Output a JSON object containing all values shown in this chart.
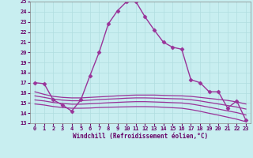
{
  "xlabel": "Windchill (Refroidissement éolien,°C)",
  "bg_color": "#c8eef0",
  "grid_color": "#b0dde0",
  "line_color": "#993399",
  "xlim": [
    -0.5,
    23.5
  ],
  "ylim": [
    13,
    25
  ],
  "yticks": [
    13,
    14,
    15,
    16,
    17,
    18,
    19,
    20,
    21,
    22,
    23,
    24,
    25
  ],
  "xticks": [
    0,
    1,
    2,
    3,
    4,
    5,
    6,
    7,
    8,
    9,
    10,
    11,
    12,
    13,
    14,
    15,
    16,
    17,
    18,
    19,
    20,
    21,
    22,
    23
  ],
  "series": [
    {
      "x": [
        0,
        1,
        2,
        3,
        4,
        5,
        6,
        7,
        8,
        9,
        10,
        11,
        12,
        13,
        14,
        15,
        16,
        17,
        18,
        19,
        20,
        21,
        22,
        23
      ],
      "y": [
        17.0,
        16.9,
        15.3,
        14.8,
        14.2,
        15.3,
        17.7,
        20.0,
        22.8,
        24.1,
        25.0,
        25.0,
        23.5,
        22.2,
        21.0,
        20.5,
        20.3,
        17.3,
        17.0,
        16.1,
        16.1,
        14.5,
        15.2,
        13.3
      ],
      "marker": "D",
      "markersize": 2.5,
      "linewidth": 1.0
    },
    {
      "x": [
        0,
        1,
        2,
        3,
        4,
        5,
        6,
        7,
        8,
        9,
        10,
        11,
        12,
        13,
        14,
        15,
        16,
        17,
        18,
        19,
        20,
        21,
        22,
        23
      ],
      "y": [
        16.1,
        15.85,
        15.65,
        15.55,
        15.5,
        15.5,
        15.55,
        15.6,
        15.65,
        15.7,
        15.75,
        15.78,
        15.78,
        15.78,
        15.75,
        15.72,
        15.7,
        15.65,
        15.55,
        15.45,
        15.35,
        15.25,
        15.1,
        14.9
      ],
      "marker": null,
      "markersize": 0,
      "linewidth": 0.9
    },
    {
      "x": [
        0,
        1,
        2,
        3,
        4,
        5,
        6,
        7,
        8,
        9,
        10,
        11,
        12,
        13,
        14,
        15,
        16,
        17,
        18,
        19,
        20,
        21,
        22,
        23
      ],
      "y": [
        15.7,
        15.55,
        15.38,
        15.28,
        15.22,
        15.22,
        15.28,
        15.33,
        15.38,
        15.42,
        15.47,
        15.5,
        15.5,
        15.48,
        15.45,
        15.42,
        15.4,
        15.32,
        15.2,
        15.05,
        14.9,
        14.75,
        14.6,
        14.4
      ],
      "marker": null,
      "markersize": 0,
      "linewidth": 0.9
    },
    {
      "x": [
        0,
        1,
        2,
        3,
        4,
        5,
        6,
        7,
        8,
        9,
        10,
        11,
        12,
        13,
        14,
        15,
        16,
        17,
        18,
        19,
        20,
        21,
        22,
        23
      ],
      "y": [
        15.3,
        15.2,
        15.05,
        14.95,
        14.88,
        14.88,
        14.92,
        14.97,
        15.02,
        15.06,
        15.1,
        15.13,
        15.13,
        15.1,
        15.07,
        15.03,
        15.0,
        14.9,
        14.75,
        14.58,
        14.4,
        14.22,
        14.05,
        13.82
      ],
      "marker": null,
      "markersize": 0,
      "linewidth": 0.9
    },
    {
      "x": [
        0,
        1,
        2,
        3,
        4,
        5,
        6,
        7,
        8,
        9,
        10,
        11,
        12,
        13,
        14,
        15,
        16,
        17,
        18,
        19,
        20,
        21,
        22,
        23
      ],
      "y": [
        14.9,
        14.8,
        14.65,
        14.55,
        14.48,
        14.48,
        14.5,
        14.55,
        14.58,
        14.6,
        14.62,
        14.64,
        14.64,
        14.62,
        14.58,
        14.53,
        14.48,
        14.35,
        14.18,
        13.98,
        13.8,
        13.6,
        13.4,
        13.15
      ],
      "marker": null,
      "markersize": 0,
      "linewidth": 0.9
    }
  ]
}
